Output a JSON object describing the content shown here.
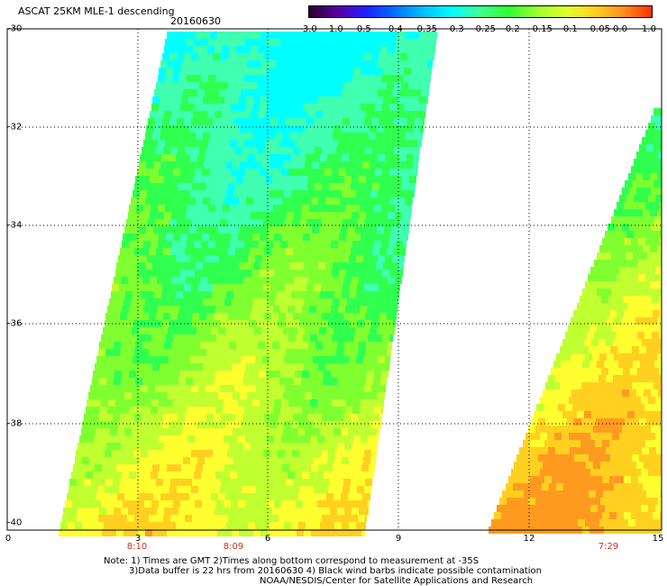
{
  "header": {
    "title": "ASCAT 25KM MLE-1 descending",
    "date": "20160630"
  },
  "colorbar": {
    "tick_labels": [
      "-3.0",
      "-1.0",
      "-0.5",
      "-0.4",
      "-0.35",
      "-0.3",
      "-0.25",
      "-0.2",
      "-0.15",
      "-0.1",
      "-0.05",
      "0.0",
      "1.0"
    ],
    "colors": [
      "#2a0030",
      "#5a00a0",
      "#2020ff",
      "#0070ff",
      "#00c0ff",
      "#00ffff",
      "#40ff90",
      "#30ff30",
      "#a0ff30",
      "#e0ff30",
      "#ffd020",
      "#ff9020",
      "#ff3000"
    ]
  },
  "axes": {
    "y_labels": [
      "-30",
      "-32",
      "-34",
      "-36",
      "-38",
      "-40"
    ],
    "x_labels": [
      "0",
      "3",
      "6",
      "9",
      "12",
      "15"
    ]
  },
  "times": [
    "8:10",
    "8:09",
    "7:29"
  ],
  "notes": {
    "line1": "Note: 1) Times are GMT 2)Times along bottom correspond to measurement at -35S",
    "line2": "3)Data buffer is 22 hrs from 20160630 4) Black wind barbs indicate possible contamination",
    "line3": "NOAA/NESDIS/Center for Satellite Applications and Research"
  }
}
